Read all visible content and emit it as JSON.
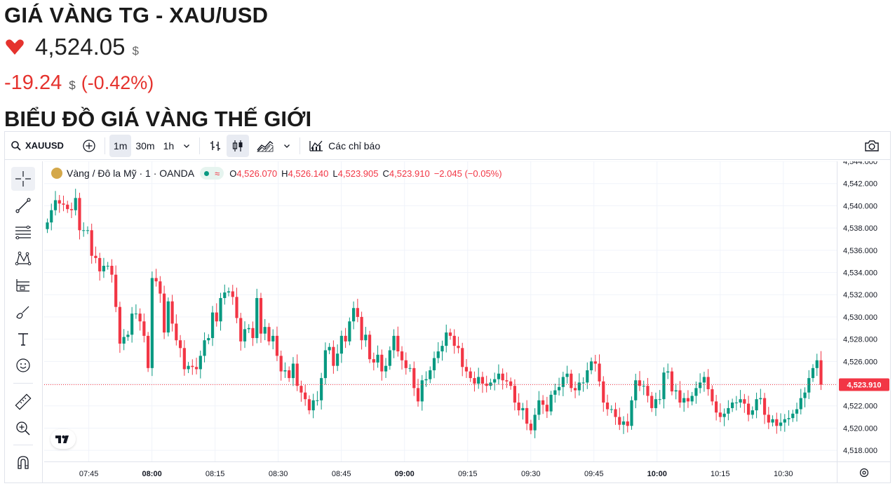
{
  "header": {
    "title": "GIÁ VÀNG TG - XAU/USD",
    "price": "4,524.05",
    "price_unit": "$",
    "change": "-19.24",
    "change_unit": "$",
    "change_pct": "(-0.42%)",
    "section_title": "BIỂU ĐỒ GIÁ VÀNG THẾ GIỚI",
    "down_color": "#e5322d"
  },
  "toolbar": {
    "symbol": "XAUUSD",
    "intervals": [
      "1m",
      "30m",
      "1h"
    ],
    "active_interval": "1m",
    "indicators_label": "Các chỉ báo"
  },
  "legend": {
    "name": "Vàng / Đô la Mỹ · 1 · OANDA",
    "o_key": "O",
    "o_val": "4,526.070",
    "h_key": "H",
    "h_val": "4,526.140",
    "l_key": "L",
    "l_val": "4,523.905",
    "c_key": "C",
    "c_val": "4,523.910",
    "chg": "−2.045 (−0.05%)"
  },
  "left_tools": [
    "crosshair-icon",
    "trend-line-icon",
    "fib-retracement-icon",
    "pattern-icon",
    "prediction-icon",
    "brush-icon",
    "text-icon",
    "emoji-icon",
    "ruler-icon",
    "zoom-in-icon",
    "magnet-icon"
  ],
  "colors": {
    "up": "#089981",
    "down": "#f23645",
    "grid": "#f0f3fa",
    "axis_text": "#131722"
  },
  "chart_data": {
    "type": "candlestick",
    "symbol": "XAUUSD",
    "interval": "1m",
    "ylim": [
      4517,
      4544
    ],
    "y_ticks": [
      "4,518.000",
      "4,520.000",
      "4,522.000",
      "4,524.000",
      "4,526.000",
      "4,528.000",
      "4,530.000",
      "4,532.000",
      "4,534.000",
      "4,536.000",
      "4,538.000",
      "4,540.000",
      "4,542.000",
      "4,544.000"
    ],
    "y_tick_values": [
      4518,
      4520,
      4522,
      4524,
      4526,
      4528,
      4530,
      4532,
      4534,
      4536,
      4538,
      4540,
      4542,
      4544
    ],
    "x_ticks": [
      "07:45",
      "08:00",
      "08:15",
      "08:30",
      "08:45",
      "09:00",
      "09:15",
      "09:30",
      "09:45",
      "10:00",
      "10:15",
      "10:30"
    ],
    "x_tick_bold": [
      "08:00",
      "09:00",
      "10:00"
    ],
    "x_tick_minutes": [
      465,
      480,
      495,
      510,
      525,
      540,
      555,
      570,
      585,
      600,
      615,
      630
    ],
    "x_range_minutes": [
      454.4,
      642.7
    ],
    "last_price": 4523.91,
    "last_price_label": "4,523.910",
    "closes": [
      4538.5,
      4539.6,
      4540.5,
      4540.2,
      4540.1,
      4539.7,
      4539.6,
      4540.7,
      4537.8,
      4537.8,
      4537.8,
      4535.5,
      4535.3,
      4534.1,
      4534.6,
      4534.6,
      4533.8,
      4530.9,
      4527.6,
      4528.2,
      4528.4,
      4530.3,
      4530.3,
      4529.6,
      4528.3,
      4525.4,
      4533.5,
      4533.2,
      4532.1,
      4528.6,
      4531.4,
      4529.4,
      4527.9,
      4527.2,
      4525.3,
      4525.6,
      4525.5,
      4525.3,
      4526.5,
      4527.9,
      4528.1,
      4530.4,
      4529.6,
      4531.7,
      4532.2,
      4532.3,
      4531.8,
      4529.9,
      4527.8,
      4528.9,
      4529.0,
      4528.1,
      4531.7,
      4528.5,
      4529.1,
      4527.8,
      4528.3,
      4526.5,
      4525.1,
      4525.2,
      4524.5,
      4525.8,
      4523.8,
      4523.2,
      4522.6,
      4521.6,
      4522.5,
      4522.5,
      4524.5,
      4527.0,
      4527.3,
      4525.6,
      4526.7,
      4528.3,
      4527.8,
      4529.6,
      4530.8,
      4530.0,
      4527.9,
      4528.4,
      4526.2,
      4525.9,
      4526.6,
      4525.1,
      4525.6,
      4527.0,
      4528.3,
      4526.9,
      4526.1,
      4525.4,
      4525.4,
      4523.6,
      4522.4,
      4524.3,
      4524.4,
      4525.2,
      4526.3,
      4526.9,
      4527.4,
      4528.6,
      4528.3,
      4527.4,
      4527.2,
      4525.5,
      4525.1,
      4524.5,
      4524.0,
      4524.6,
      4524.0,
      4523.8,
      4524.1,
      4524.4,
      4524.9,
      4524.3,
      4524.2,
      4523.8,
      4522.3,
      4521.6,
      4521.8,
      4520.4,
      4519.8,
      4521.2,
      4522.5,
      4522.1,
      4521.5,
      4523.0,
      4523.4,
      4523.7,
      4524.6,
      4524.9,
      4523.6,
      4523.4,
      4524.1,
      4524.1,
      4525.2,
      4526.0,
      4525.8,
      4524.2,
      4522.3,
      4521.7,
      4521.7,
      4521.0,
      4520.3,
      4520.6,
      4520.2,
      4522.5,
      4524.3,
      4523.8,
      4523.8,
      4522.9,
      4521.8,
      4522.6,
      4522.6,
      4525.0,
      4525.1,
      4523.3,
      4523.4,
      4522.3,
      4522.7,
      4522.4,
      4522.9,
      4523.6,
      4524.1,
      4524.6,
      4523.5,
      4522.4,
      4521.4,
      4521.0,
      4521.3,
      4521.8,
      4522.3,
      4522.3,
      4522.6,
      4522.2,
      4521.2,
      4521.6,
      4522.6,
      4522.7,
      4521.2,
      4520.5,
      4520.8,
      4520.2,
      4520.5,
      4520.8,
      4520.9,
      4521.3,
      4521.7,
      4522.7,
      4523.2,
      4524.5,
      4525.4,
      4526.1,
      4523.9
    ]
  }
}
